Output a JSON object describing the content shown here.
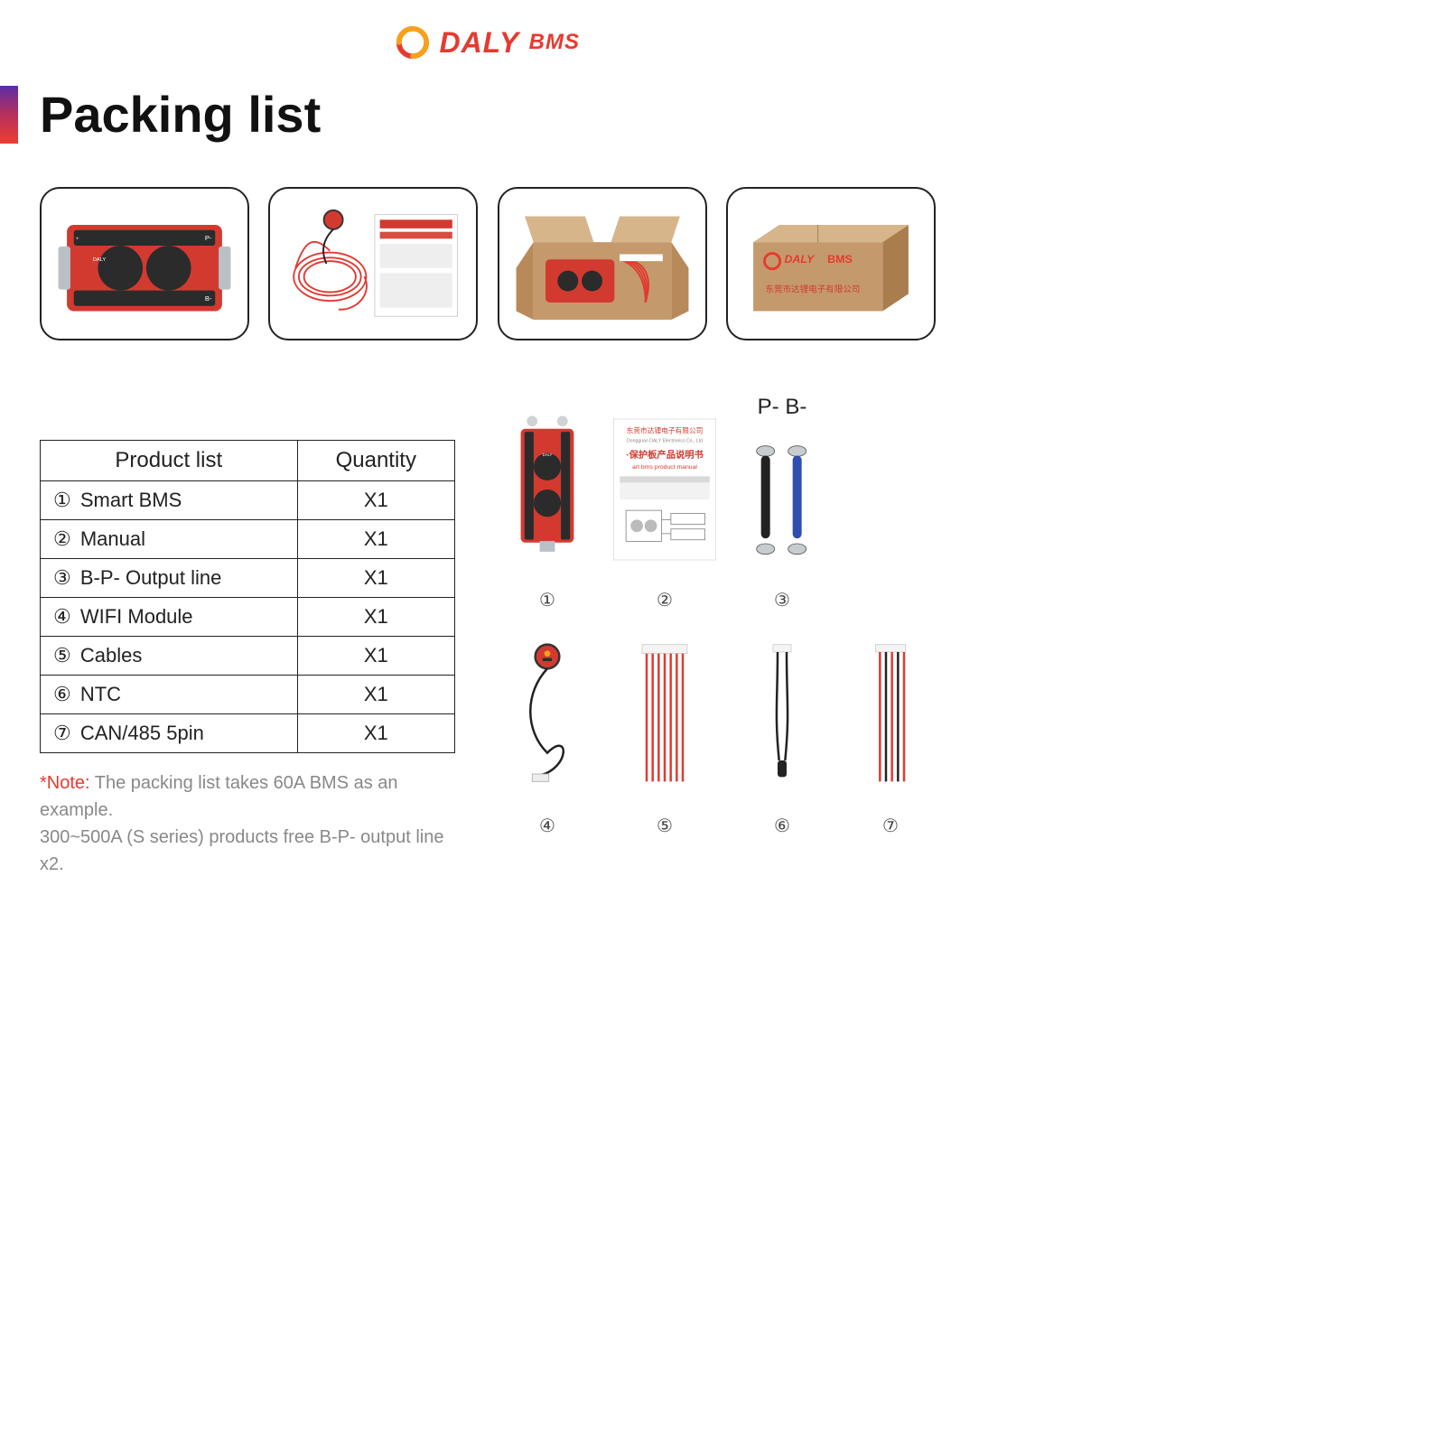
{
  "brand": {
    "daly": "DALY",
    "bms": "BMS"
  },
  "title": "Packing list",
  "colors": {
    "accent_red": "#e63a2f",
    "accent_orange": "#f7a01a",
    "text": "#222222",
    "border": "#222222",
    "muted": "#888888",
    "cardboard": "#c49a6c",
    "cardboard_dark": "#a97d4e",
    "bms_red": "#d23a30",
    "bms_dark": "#2b2b2b",
    "wire_red": "#e13b32",
    "wire_black": "#222222",
    "wire_blue": "#2f4fb0",
    "paper": "#ffffff"
  },
  "table": {
    "headers": [
      "Product list",
      "Quantity"
    ],
    "rows": [
      {
        "n": "①",
        "name": "Smart BMS",
        "qty": "X1"
      },
      {
        "n": "②",
        "name": "Manual",
        "qty": "X1"
      },
      {
        "n": "③",
        "name": "B-P- Output line",
        "qty": "X1"
      },
      {
        "n": "④",
        "name": "WIFI Module",
        "qty": "X1"
      },
      {
        "n": "⑤",
        "name": "Cables",
        "qty": "X1"
      },
      {
        "n": "⑥",
        "name": "NTC",
        "qty": "X1"
      },
      {
        "n": "⑦",
        "name": "CAN/485 5pin",
        "qty": "X1"
      }
    ]
  },
  "note": {
    "label": "*Note:",
    "line1": " The packing list takes 60A BMS as an example.",
    "line2": "300~500A (S series) products free B-P- output line x2."
  },
  "manual": {
    "cn_company": "东莞市达锂电子有限公司",
    "en_company": "Dongguan DALY Electronics Co., Ltd",
    "title_cn": "·保护板产品说明书",
    "title_en": "art bms product manual"
  },
  "grid": {
    "pb_label": "P- B-",
    "caps": [
      "①",
      "②",
      "③",
      "④",
      "⑤",
      "⑥",
      "⑦"
    ]
  },
  "box_text": {
    "logo": "DALY",
    "bms": "BMS",
    "company_cn": "东莞市达锂电子有限公司"
  }
}
